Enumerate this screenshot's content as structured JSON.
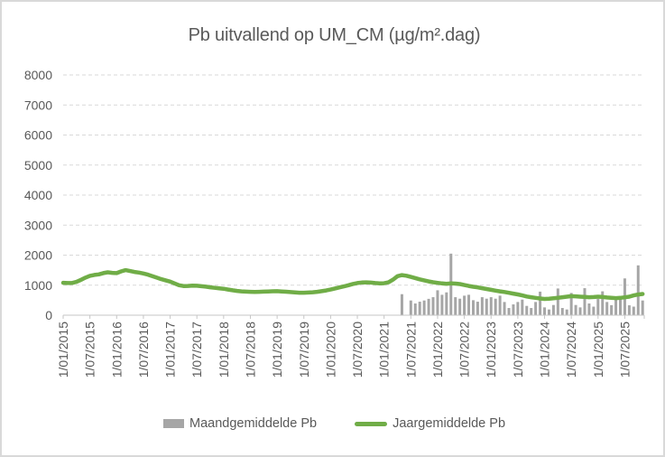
{
  "title": "Pb uitvallend op UM_CM (µg/m².dag)",
  "colors": {
    "line": "#70AD47",
    "bar": "#A6A6A6",
    "text": "#595959",
    "grid": "#D9D9D9",
    "axis": "#C6C6C6",
    "border": "#D9D9D9"
  },
  "chart_data": {
    "type": "combo",
    "title": "Pb uitvallend op UM_CM (µg/m².dag)",
    "xlabel": "",
    "ylabel": "",
    "ylim": [
      0,
      8000
    ],
    "y_tick_step": 1000,
    "y_tick_labels": [
      "0",
      "1000",
      "2000",
      "3000",
      "4000",
      "5000",
      "6000",
      "7000",
      "8000"
    ],
    "x_unit": "month",
    "x_start": "1/01/2015",
    "x_end": "1/11/2025",
    "x_tick_labels": [
      "1/01/2015",
      "1/07/2015",
      "1/01/2016",
      "1/07/2016",
      "1/01/2017",
      "1/07/2017",
      "1/01/2018",
      "1/07/2018",
      "1/01/2019",
      "1/07/2019",
      "1/01/2020",
      "1/07/2020",
      "1/01/2021",
      "1/07/2021",
      "1/01/2022",
      "1/07/2022",
      "1/01/2023",
      "1/07/2023",
      "1/01/2024",
      "1/07/2024",
      "1/01/2025",
      "1/07/2025"
    ],
    "grid": "dashed-horizontal",
    "legend_position": "bottom",
    "series": [
      {
        "name": "Maandgemiddelde Pb",
        "type": "bar",
        "color": "#A6A6A6",
        "start_month": "5/2021",
        "start_month_index": 76,
        "values": [
          700,
          0,
          490,
          390,
          450,
          490,
          545,
          600,
          830,
          680,
          760,
          2050,
          600,
          550,
          650,
          680,
          500,
          450,
          600,
          550,
          600,
          550,
          650,
          440,
          240,
          360,
          440,
          520,
          310,
          240,
          440,
          785,
          260,
          190,
          340,
          890,
          240,
          190,
          740,
          340,
          260,
          900,
          390,
          285,
          540,
          795,
          440,
          335,
          540,
          540,
          1225,
          330,
          285,
          1660,
          490
        ]
      },
      {
        "name": "Jaargemiddelde Pb",
        "type": "line",
        "color": "#70AD47",
        "start_month": "1/2015",
        "start_month_index": 0,
        "values": [
          1080,
          1070,
          1075,
          1110,
          1180,
          1250,
          1310,
          1340,
          1360,
          1400,
          1430,
          1410,
          1400,
          1460,
          1500,
          1470,
          1440,
          1420,
          1390,
          1350,
          1300,
          1250,
          1200,
          1160,
          1120,
          1060,
          1000,
          970,
          975,
          985,
          980,
          965,
          950,
          930,
          910,
          895,
          880,
          855,
          830,
          810,
          795,
          785,
          778,
          775,
          778,
          785,
          792,
          798,
          800,
          792,
          782,
          770,
          758,
          750,
          748,
          754,
          765,
          780,
          800,
          825,
          855,
          890,
          925,
          960,
          1000,
          1040,
          1070,
          1090,
          1095,
          1085,
          1070,
          1062,
          1065,
          1095,
          1185,
          1300,
          1335,
          1315,
          1275,
          1235,
          1195,
          1160,
          1125,
          1098,
          1078,
          1060,
          1048,
          1058,
          1052,
          1038,
          1005,
          975,
          948,
          925,
          898,
          872,
          845,
          818,
          795,
          772,
          745,
          718,
          692,
          658,
          622,
          598,
          576,
          556,
          540,
          550,
          566,
          580,
          598,
          616,
          636,
          628,
          618,
          608,
          598,
          606,
          616,
          608,
          590,
          578,
          568,
          578,
          596,
          618,
          658,
          690,
          708
        ]
      }
    ]
  }
}
